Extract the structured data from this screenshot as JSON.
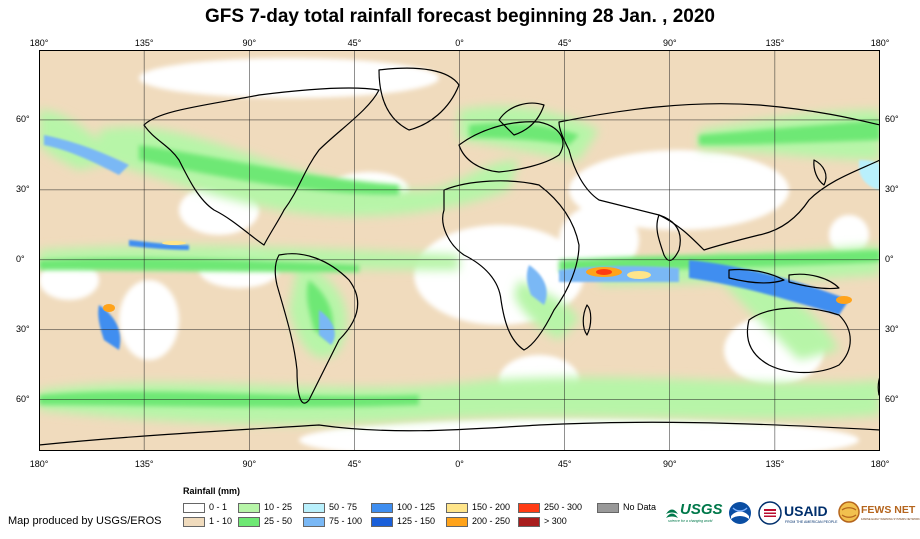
{
  "title": "GFS 7-day total rainfall forecast beginning 28 Jan. , 2020",
  "axes": {
    "longitude_labels": [
      "180°",
      "135°",
      "90°",
      "45°",
      "0°",
      "45°",
      "90°",
      "135°",
      "180°"
    ],
    "latitude_labels": [
      "60°",
      "30°",
      "0°",
      "30°",
      "60°"
    ],
    "latitude_values": [
      60,
      30,
      0,
      -30,
      -60
    ],
    "lat_range": [
      -82,
      90
    ],
    "lon_range": [
      -180,
      180
    ],
    "grid": true
  },
  "legend": {
    "title": "Rainfall (mm)",
    "items": [
      {
        "label": "0 - 1",
        "color": "#ffffff"
      },
      {
        "label": "1 - 10",
        "color": "#f0dbbd"
      },
      {
        "label": "10 - 25",
        "color": "#b7f5a8"
      },
      {
        "label": "25 - 50",
        "color": "#6ee874"
      },
      {
        "label": "50 - 75",
        "color": "#b9f0fc"
      },
      {
        "label": "75 - 100",
        "color": "#7ab8f5"
      },
      {
        "label": "100 - 125",
        "color": "#3f8ef0"
      },
      {
        "label": "125 - 150",
        "color": "#1a5fd9"
      },
      {
        "label": "150 - 200",
        "color": "#ffe58a"
      },
      {
        "label": "200 - 250",
        "color": "#ffa31a"
      },
      {
        "label": "250 - 300",
        "color": "#ff3b14"
      },
      {
        "label": "> 300",
        "color": "#a81d1d"
      },
      {
        "label": "No Data",
        "color": "#999999"
      }
    ]
  },
  "credit": "Map produced by USGS/EROS",
  "logos": {
    "usgs": "USGS",
    "usgs_tagline": "science for a changing world",
    "usaid": "USAID",
    "usaid_tagline": "FROM THE AMERICAN PEOPLE",
    "fewsnet": "FEWS NET",
    "fewsnet_tagline": "FAMINE EARLY WARNING SYSTEMS NETWORK"
  }
}
